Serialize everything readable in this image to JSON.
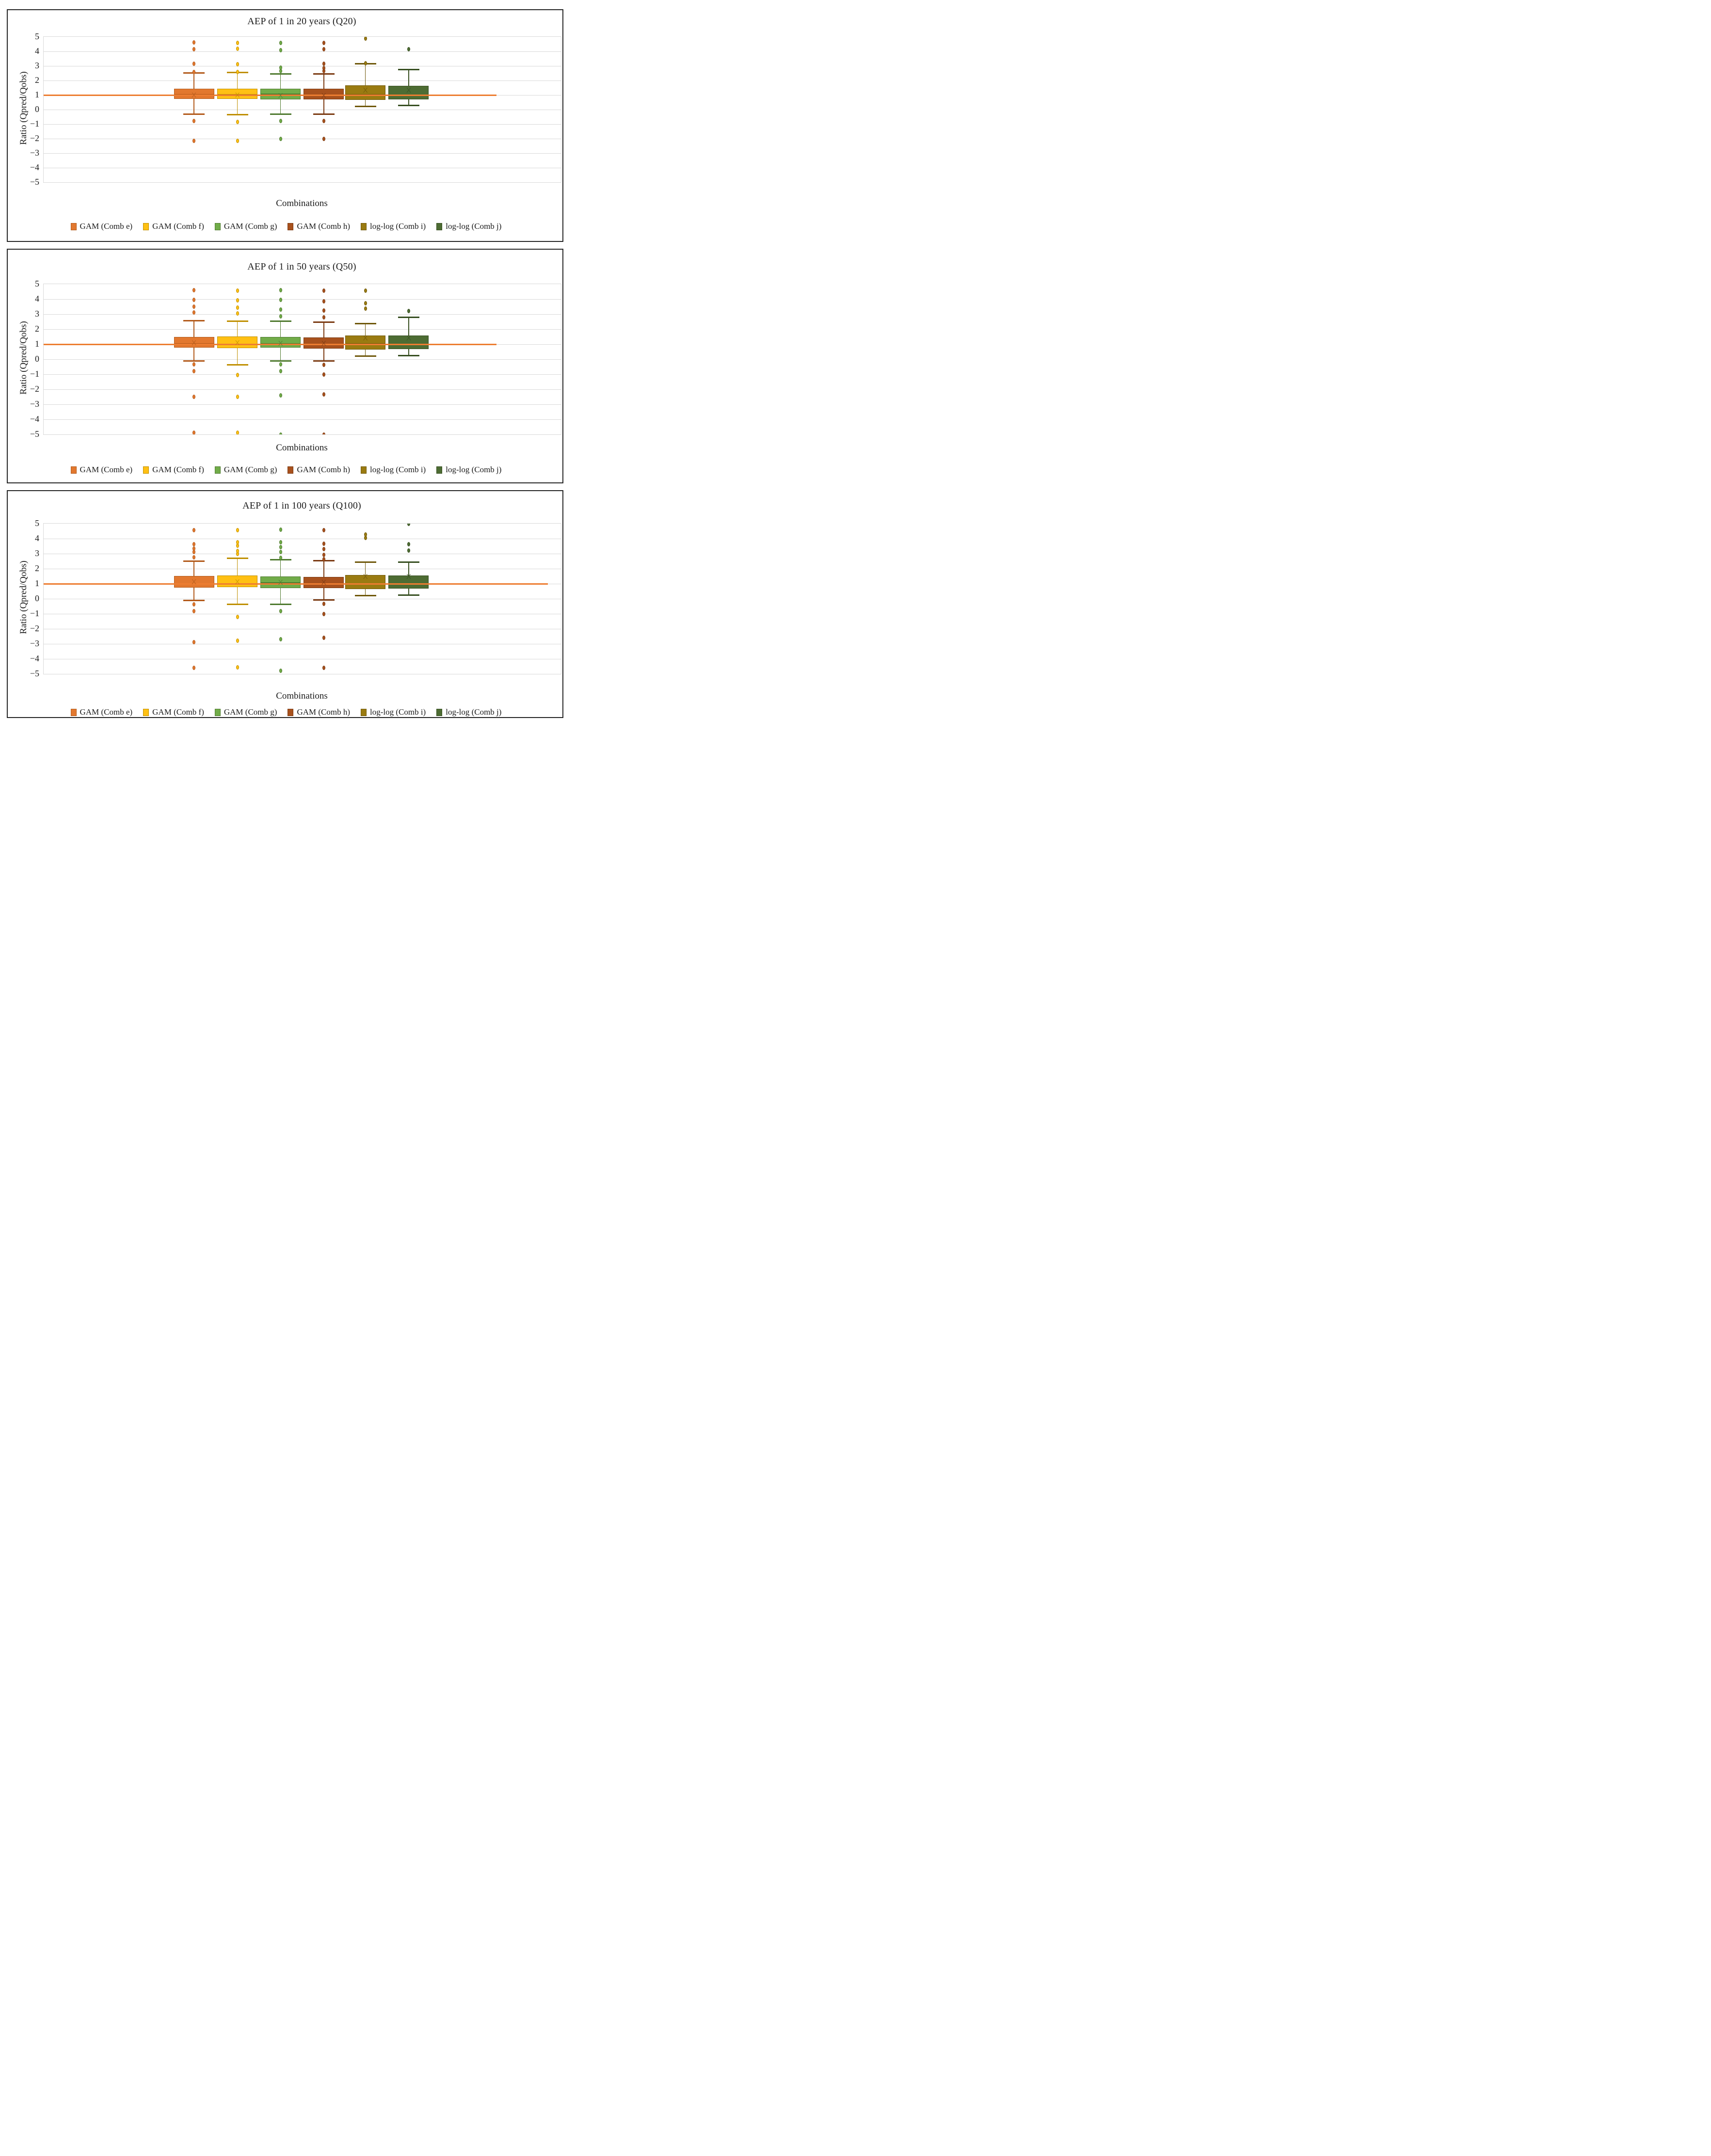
{
  "figure": {
    "y_axis_label": "Ratio (Qpred/Qobs)",
    "x_axis_label": "Combinations",
    "reference_line_color": "#ED7D31",
    "gridline_color": "#d9d9d9"
  },
  "chart_data": [
    {
      "type": "boxplot",
      "title": "AEP of 1 in 20 years (Q20)",
      "y_axis_label": "Ratio (Qpred/Qobs)",
      "x_axis_label": "Combinations",
      "y_ticks": [
        "5",
        "4",
        "3",
        "2",
        "1",
        "0",
        "−1",
        "−2",
        "−3",
        "−4",
        "−5"
      ],
      "ylim": [
        -5,
        5
      ],
      "grid": "horizontal",
      "legend_position": "bottom",
      "ref_line": {
        "value": 1,
        "color": "#ED7D31",
        "extent": 0.875
      },
      "series": [
        {
          "name": "GAM (Comb e)",
          "fill": "#E2782F",
          "stroke": "#B25A1B",
          "box": {
            "whisker_low": -0.33,
            "q1": 0.72,
            "median": 1.03,
            "q3": 1.45,
            "whisker_high": 2.52,
            "mean": 0.96
          },
          "outliers_high": [
            2.6,
            3.16,
            4.16,
            4.62
          ],
          "outliers_low": [
            -0.78,
            -2.15
          ]
        },
        {
          "name": "GAM (Comb f)",
          "fill": "#FFC013",
          "stroke": "#BF8F00",
          "box": {
            "whisker_low": -0.35,
            "q1": 0.73,
            "median": 1.05,
            "q3": 1.44,
            "whisker_high": 2.55,
            "mean": 0.98
          },
          "outliers_high": [
            2.6,
            3.12,
            4.18,
            4.6
          ],
          "outliers_low": [
            -0.85,
            -2.15
          ]
        },
        {
          "name": "GAM (Comb g)",
          "fill": "#71AC49",
          "stroke": "#4F7A2F",
          "box": {
            "whisker_low": -0.33,
            "q1": 0.7,
            "median": 1.08,
            "q3": 1.43,
            "whisker_high": 2.45,
            "mean": 0.93
          },
          "outliers_high": [
            2.64,
            2.9,
            4.1,
            4.6
          ],
          "outliers_low": [
            -0.77,
            -2.02
          ]
        },
        {
          "name": "GAM (Comb h)",
          "fill": "#A8511D",
          "stroke": "#7B3A12",
          "box": {
            "whisker_low": -0.33,
            "q1": 0.7,
            "median": 1.0,
            "q3": 1.44,
            "whisker_high": 2.45,
            "mean": 0.95
          },
          "outliers_high": [
            2.64,
            2.86,
            3.14,
            4.15,
            4.6
          ],
          "outliers_low": [
            -0.79,
            -2.0
          ]
        },
        {
          "name": "log-log (Comb i)",
          "fill": "#9A7B11",
          "stroke": "#6F580A",
          "box": {
            "whisker_low": 0.22,
            "q1": 0.67,
            "median": 1.04,
            "q3": 1.67,
            "whisker_high": 3.15,
            "mean": 1.3
          },
          "outliers_high": [
            3.2,
            4.88
          ],
          "outliers_low": []
        },
        {
          "name": "log-log (Comb j)",
          "fill": "#4D6C33",
          "stroke": "#374F21",
          "box": {
            "whisker_low": 0.28,
            "q1": 0.69,
            "median": 1.0,
            "q3": 1.62,
            "whisker_high": 2.75,
            "mean": 1.3
          },
          "outliers_high": [
            4.15
          ],
          "outliers_low": []
        }
      ]
    },
    {
      "type": "boxplot",
      "title": "AEP of 1 in 50 years (Q50)",
      "y_axis_label": "Ratio (Qpred/Qobs)",
      "x_axis_label": "Combinations",
      "y_ticks": [
        "5",
        "4",
        "3",
        "2",
        "1",
        "0",
        "−1",
        "−2",
        "−3",
        "−4",
        "−5"
      ],
      "ylim": [
        -5,
        5
      ],
      "grid": "horizontal",
      "legend_position": "bottom",
      "ref_line": {
        "value": 1,
        "color": "#ED7D31",
        "extent": 0.875
      },
      "series": [
        {
          "name": "GAM (Comb e)",
          "fill": "#E2782F",
          "stroke": "#B25A1B",
          "box": {
            "whisker_low": -0.11,
            "q1": 0.76,
            "median": 1.02,
            "q3": 1.49,
            "whisker_high": 2.55,
            "mean": 1.05
          },
          "outliers_high": [
            3.1,
            3.5,
            3.95,
            4.6
          ],
          "outliers_low": [
            -0.35,
            -0.78,
            -2.5,
            -4.9
          ]
        },
        {
          "name": "GAM (Comb f)",
          "fill": "#FFC013",
          "stroke": "#BF8F00",
          "box": {
            "whisker_low": -0.38,
            "q1": 0.75,
            "median": 1.0,
            "q3": 1.52,
            "whisker_high": 2.52,
            "mean": 1.05
          },
          "outliers_high": [
            3.05,
            3.42,
            3.93,
            4.55
          ],
          "outliers_low": [
            -1.05,
            -2.5,
            -4.9
          ]
        },
        {
          "name": "GAM (Comb g)",
          "fill": "#71AC49",
          "stroke": "#4F7A2F",
          "box": {
            "whisker_low": -0.12,
            "q1": 0.78,
            "median": 1.02,
            "q3": 1.5,
            "whisker_high": 2.52,
            "mean": 1.03
          },
          "outliers_high": [
            2.85,
            3.3,
            3.95,
            4.6
          ],
          "outliers_low": [
            -0.35,
            -0.78,
            -2.4,
            -5.0
          ]
        },
        {
          "name": "GAM (Comb h)",
          "fill": "#A8511D",
          "stroke": "#7B3A12",
          "box": {
            "whisker_low": -0.11,
            "q1": 0.7,
            "median": 1.0,
            "q3": 1.45,
            "whisker_high": 2.46,
            "mean": 1.04
          },
          "outliers_high": [
            2.79,
            3.25,
            3.84,
            4.55
          ],
          "outliers_low": [
            -0.36,
            -1.02,
            -2.35,
            -5.0
          ]
        },
        {
          "name": "log-log (Comb i)",
          "fill": "#9A7B11",
          "stroke": "#6F580A",
          "box": {
            "whisker_low": 0.21,
            "q1": 0.64,
            "median": 1.02,
            "q3": 1.59,
            "whisker_high": 2.38,
            "mean": 1.38
          },
          "outliers_high": [
            3.38,
            3.73,
            4.55
          ],
          "outliers_low": []
        },
        {
          "name": "log-log (Comb j)",
          "fill": "#4D6C33",
          "stroke": "#374F21",
          "box": {
            "whisker_low": 0.25,
            "q1": 0.67,
            "median": 1.0,
            "q3": 1.57,
            "whisker_high": 2.8,
            "mean": 1.38
          },
          "outliers_high": [
            3.2
          ],
          "outliers_low": []
        }
      ]
    },
    {
      "type": "boxplot",
      "title": "AEP of 1 in 100 years (Q100)",
      "y_axis_label": "Ratio (Qpred/Qobs)",
      "x_axis_label": "Combinations",
      "y_ticks": [
        "5",
        "4",
        "3",
        "2",
        "1",
        "0",
        "−1",
        "−2",
        "−3",
        "−4",
        "−5"
      ],
      "ylim": [
        -5,
        5
      ],
      "grid": "horizontal",
      "legend_position": "bottom",
      "ref_line": {
        "value": 1,
        "color": "#ED7D31",
        "extent": 0.975
      },
      "series": [
        {
          "name": "GAM (Comb e)",
          "fill": "#E2782F",
          "stroke": "#B25A1B",
          "box": {
            "whisker_low": -0.1,
            "q1": 0.73,
            "median": 0.98,
            "q3": 1.53,
            "whisker_high": 2.5,
            "mean": 1.1
          },
          "outliers_high": [
            2.77,
            3.12,
            3.34,
            3.63,
            4.58
          ],
          "outliers_low": [
            -0.37,
            -0.82,
            -2.9,
            -4.6
          ]
        },
        {
          "name": "GAM (Comb f)",
          "fill": "#FFC013",
          "stroke": "#BF8F00",
          "box": {
            "whisker_low": -0.37,
            "q1": 0.77,
            "median": 1.0,
            "q3": 1.55,
            "whisker_high": 2.68,
            "mean": 1.1
          },
          "outliers_high": [
            2.99,
            3.19,
            3.54,
            3.76,
            4.55
          ],
          "outliers_low": [
            -1.22,
            -2.78,
            -4.55
          ]
        },
        {
          "name": "GAM (Comb g)",
          "fill": "#71AC49",
          "stroke": "#4F7A2F",
          "box": {
            "whisker_low": -0.37,
            "q1": 0.71,
            "median": 1.05,
            "q3": 1.5,
            "whisker_high": 2.6,
            "mean": 1.08
          },
          "outliers_high": [
            2.71,
            3.12,
            3.42,
            3.76,
            4.6
          ],
          "outliers_low": [
            -0.82,
            -2.7,
            -4.8
          ]
        },
        {
          "name": "GAM (Comb h)",
          "fill": "#A8511D",
          "stroke": "#7B3A12",
          "box": {
            "whisker_low": -0.09,
            "q1": 0.71,
            "median": 0.97,
            "q3": 1.46,
            "whisker_high": 2.54,
            "mean": 1.07
          },
          "outliers_high": [
            2.64,
            2.93,
            3.31,
            3.66,
            4.55
          ],
          "outliers_low": [
            -0.35,
            -1.0,
            -2.6,
            -4.6
          ]
        },
        {
          "name": "log-log (Comb i)",
          "fill": "#9A7B11",
          "stroke": "#6F580A",
          "box": {
            "whisker_low": 0.21,
            "q1": 0.64,
            "median": 1.0,
            "q3": 1.59,
            "whisker_high": 2.43,
            "mean": 1.45
          },
          "outliers_high": [
            4.05,
            4.28
          ],
          "outliers_low": []
        },
        {
          "name": "log-log (Comb j)",
          "fill": "#4D6C33",
          "stroke": "#374F21",
          "box": {
            "whisker_low": 0.24,
            "q1": 0.68,
            "median": 1.0,
            "q3": 1.55,
            "whisker_high": 2.43,
            "mean": 1.45
          },
          "outliers_high": [
            3.21,
            3.63,
            5.0
          ],
          "outliers_low": []
        }
      ]
    }
  ]
}
